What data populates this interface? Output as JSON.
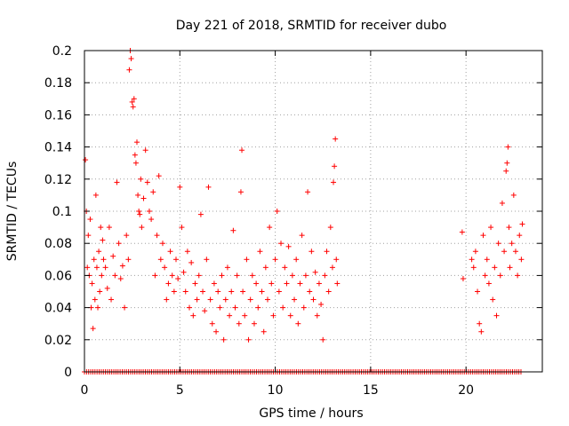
{
  "chart_data": {
    "type": "scatter",
    "title": "Day 221 of 2018, SRMTID for receiver dubo",
    "xlabel": "GPS time / hours",
    "ylabel": "SRMTID / TECUs",
    "xlim": [
      0,
      24
    ],
    "ylim": [
      0,
      0.2
    ],
    "grid": true,
    "marker": "+",
    "marker_color": "#ff0000",
    "x_ticks": [
      0,
      5,
      10,
      15,
      20
    ],
    "x_tick_labels": [
      "0",
      "5",
      "10",
      "15",
      "20"
    ],
    "y_ticks": [
      0,
      0.02,
      0.04,
      0.06,
      0.08,
      0.1,
      0.12,
      0.14,
      0.16,
      0.18,
      0.2
    ],
    "y_tick_labels": [
      "0",
      "0.02",
      "0.04",
      "0.06",
      "0.08",
      "0.1",
      "0.12",
      "0.14",
      "0.16",
      "0.18",
      "0.2"
    ],
    "series": [
      {
        "name": "SRMTID",
        "points": [
          [
            0.05,
            0.132
          ],
          [
            0.1,
            0.1
          ],
          [
            0.15,
            0.065
          ],
          [
            0.2,
            0.085
          ],
          [
            0.25,
            0.06
          ],
          [
            0.3,
            0.095
          ],
          [
            0.35,
            0.04
          ],
          [
            0.4,
            0.055
          ],
          [
            0.45,
            0.027
          ],
          [
            0.5,
            0.07
          ],
          [
            0.55,
            0.045
          ],
          [
            0.6,
            0.11
          ],
          [
            0.65,
            0.065
          ],
          [
            0.7,
            0.04
          ],
          [
            0.75,
            0.075
          ],
          [
            0.8,
            0.05
          ],
          [
            0.85,
            0.09
          ],
          [
            0.9,
            0.06
          ],
          [
            0.95,
            0.082
          ],
          [
            1.0,
            0.07
          ],
          [
            1.1,
            0.065
          ],
          [
            1.2,
            0.052
          ],
          [
            1.3,
            0.09
          ],
          [
            1.4,
            0.045
          ],
          [
            1.5,
            0.072
          ],
          [
            1.6,
            0.06
          ],
          [
            1.7,
            0.118
          ],
          [
            1.8,
            0.08
          ],
          [
            1.9,
            0.058
          ],
          [
            2.0,
            0.066
          ],
          [
            2.1,
            0.04
          ],
          [
            2.2,
            0.085
          ],
          [
            2.3,
            0.07
          ],
          [
            2.35,
            0.188
          ],
          [
            2.4,
            0.2
          ],
          [
            2.45,
            0.195
          ],
          [
            2.5,
            0.168
          ],
          [
            2.55,
            0.165
          ],
          [
            2.6,
            0.17
          ],
          [
            2.65,
            0.135
          ],
          [
            2.7,
            0.13
          ],
          [
            2.75,
            0.143
          ],
          [
            2.8,
            0.11
          ],
          [
            2.85,
            0.1
          ],
          [
            2.9,
            0.098
          ],
          [
            2.95,
            0.12
          ],
          [
            3.0,
            0.09
          ],
          [
            3.1,
            0.108
          ],
          [
            3.2,
            0.138
          ],
          [
            3.3,
            0.118
          ],
          [
            3.4,
            0.1
          ],
          [
            3.5,
            0.095
          ],
          [
            3.6,
            0.112
          ],
          [
            3.7,
            0.06
          ],
          [
            3.8,
            0.085
          ],
          [
            3.9,
            0.122
          ],
          [
            4.0,
            0.07
          ],
          [
            4.1,
            0.08
          ],
          [
            4.2,
            0.065
          ],
          [
            4.3,
            0.045
          ],
          [
            4.4,
            0.055
          ],
          [
            4.5,
            0.075
          ],
          [
            4.6,
            0.06
          ],
          [
            4.7,
            0.05
          ],
          [
            4.8,
            0.07
          ],
          [
            4.9,
            0.058
          ],
          [
            5.0,
            0.115
          ],
          [
            5.1,
            0.09
          ],
          [
            5.2,
            0.062
          ],
          [
            5.3,
            0.05
          ],
          [
            5.4,
            0.075
          ],
          [
            5.5,
            0.04
          ],
          [
            5.6,
            0.068
          ],
          [
            5.7,
            0.035
          ],
          [
            5.8,
            0.055
          ],
          [
            5.9,
            0.045
          ],
          [
            6.0,
            0.06
          ],
          [
            6.1,
            0.098
          ],
          [
            6.2,
            0.05
          ],
          [
            6.3,
            0.038
          ],
          [
            6.4,
            0.07
          ],
          [
            6.5,
            0.115
          ],
          [
            6.6,
            0.045
          ],
          [
            6.7,
            0.03
          ],
          [
            6.8,
            0.055
          ],
          [
            6.9,
            0.025
          ],
          [
            7.0,
            0.05
          ],
          [
            7.1,
            0.04
          ],
          [
            7.2,
            0.06
          ],
          [
            7.3,
            0.02
          ],
          [
            7.4,
            0.045
          ],
          [
            7.5,
            0.065
          ],
          [
            7.6,
            0.035
          ],
          [
            7.7,
            0.05
          ],
          [
            7.8,
            0.088
          ],
          [
            7.9,
            0.04
          ],
          [
            8.0,
            0.06
          ],
          [
            8.1,
            0.03
          ],
          [
            8.2,
            0.112
          ],
          [
            8.25,
            0.138
          ],
          [
            8.3,
            0.05
          ],
          [
            8.4,
            0.035
          ],
          [
            8.5,
            0.07
          ],
          [
            8.6,
            0.02
          ],
          [
            8.7,
            0.045
          ],
          [
            8.8,
            0.06
          ],
          [
            8.9,
            0.03
          ],
          [
            9.0,
            0.055
          ],
          [
            9.1,
            0.04
          ],
          [
            9.2,
            0.075
          ],
          [
            9.3,
            0.05
          ],
          [
            9.4,
            0.025
          ],
          [
            9.5,
            0.065
          ],
          [
            9.6,
            0.045
          ],
          [
            9.7,
            0.09
          ],
          [
            9.8,
            0.055
          ],
          [
            9.9,
            0.035
          ],
          [
            10.0,
            0.07
          ],
          [
            10.1,
            0.1
          ],
          [
            10.2,
            0.05
          ],
          [
            10.3,
            0.08
          ],
          [
            10.4,
            0.04
          ],
          [
            10.5,
            0.065
          ],
          [
            10.6,
            0.055
          ],
          [
            10.7,
            0.078
          ],
          [
            10.8,
            0.035
          ],
          [
            10.9,
            0.06
          ],
          [
            11.0,
            0.045
          ],
          [
            11.1,
            0.07
          ],
          [
            11.2,
            0.03
          ],
          [
            11.3,
            0.055
          ],
          [
            11.4,
            0.085
          ],
          [
            11.5,
            0.04
          ],
          [
            11.6,
            0.06
          ],
          [
            11.7,
            0.112
          ],
          [
            11.8,
            0.05
          ],
          [
            11.9,
            0.075
          ],
          [
            12.0,
            0.045
          ],
          [
            12.1,
            0.062
          ],
          [
            12.2,
            0.035
          ],
          [
            12.3,
            0.055
          ],
          [
            12.4,
            0.042
          ],
          [
            12.5,
            0.02
          ],
          [
            12.6,
            0.06
          ],
          [
            12.7,
            0.075
          ],
          [
            12.8,
            0.05
          ],
          [
            12.9,
            0.09
          ],
          [
            13.0,
            0.065
          ],
          [
            13.05,
            0.118
          ],
          [
            13.1,
            0.128
          ],
          [
            13.15,
            0.145
          ],
          [
            13.2,
            0.07
          ],
          [
            13.25,
            0.055
          ],
          [
            19.8,
            0.087
          ],
          [
            19.85,
            0.058
          ],
          [
            20.3,
            0.07
          ],
          [
            20.4,
            0.065
          ],
          [
            20.5,
            0.075
          ],
          [
            20.6,
            0.05
          ],
          [
            20.7,
            0.03
          ],
          [
            20.8,
            0.025
          ],
          [
            20.9,
            0.085
          ],
          [
            21.0,
            0.06
          ],
          [
            21.1,
            0.07
          ],
          [
            21.2,
            0.055
          ],
          [
            21.3,
            0.09
          ],
          [
            21.4,
            0.045
          ],
          [
            21.5,
            0.065
          ],
          [
            21.6,
            0.035
          ],
          [
            21.7,
            0.08
          ],
          [
            21.8,
            0.06
          ],
          [
            21.9,
            0.105
          ],
          [
            22.0,
            0.075
          ],
          [
            22.1,
            0.125
          ],
          [
            22.15,
            0.13
          ],
          [
            22.2,
            0.14
          ],
          [
            22.25,
            0.09
          ],
          [
            22.3,
            0.065
          ],
          [
            22.4,
            0.08
          ],
          [
            22.5,
            0.11
          ],
          [
            22.6,
            0.075
          ],
          [
            22.7,
            0.06
          ],
          [
            22.8,
            0.085
          ],
          [
            22.9,
            0.07
          ],
          [
            22.95,
            0.092
          ]
        ]
      }
    ]
  }
}
